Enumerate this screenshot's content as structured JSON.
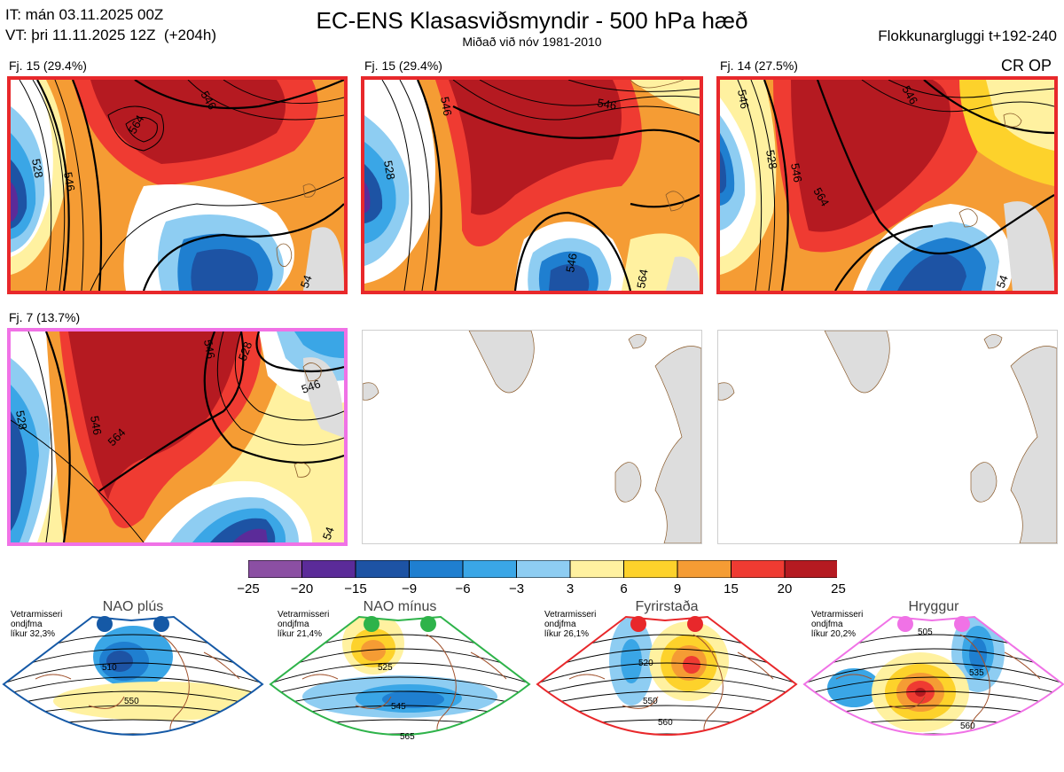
{
  "header": {
    "it_line": "IT: mán 03.11.2025 00Z",
    "vt_line": "VT: þri 11.11.2025 12Z  (+204h)",
    "title": "EC-ENS Klasasviðsmyndir - 500 hPa hæð",
    "subtitle": "Miðað við nóv 1981-2010",
    "window": "Flokkunargluggi t+192-240",
    "op_label": "CR OP"
  },
  "panels": [
    {
      "label": "Fj. 15 (29.4%)",
      "frame_color": "#e8282b",
      "contours": [
        "546",
        "528",
        "564",
        "546",
        "54"
      ]
    },
    {
      "label": "Fj. 15 (29.4%)",
      "frame_color": "#e8282b",
      "contours": [
        "546",
        "528",
        "546",
        "546",
        "564"
      ]
    },
    {
      "label": "Fj. 14 (27.5%)",
      "frame_color": "#e8282b",
      "contours": [
        "546",
        "528",
        "546",
        "564",
        "546",
        "54"
      ]
    },
    {
      "label": "Fj. 7 (13.7%)",
      "frame_color": "#f072e6",
      "contours": [
        "546",
        "528",
        "546",
        "564",
        "546",
        "54",
        "528"
      ]
    }
  ],
  "chart_data": {
    "type": "heatmap",
    "title": "EC-ENS Klasasviðsmyndir - 500 hPa hæð",
    "variable": "500 hPa hæð frávik",
    "colorbar": {
      "ticks": [
        "−25",
        "−20",
        "−15",
        "−9",
        "−6",
        "−3",
        "3",
        "6",
        "9",
        "15",
        "20",
        "25"
      ],
      "boundaries": [
        -25,
        -20,
        -15,
        -9,
        -6,
        -3,
        3,
        6,
        9,
        15,
        20,
        25
      ],
      "colors": [
        "#8b4fa3",
        "#5b2b99",
        "#1d53a4",
        "#1f7fd0",
        "#3aa6e6",
        "#8ecdf2",
        "#ffffff",
        "#fff1a0",
        "#fdd22b",
        "#f59c34",
        "#ef3b32",
        "#b51a21"
      ]
    },
    "clusters": [
      {
        "name": "Fj. 15",
        "percent": 29.4
      },
      {
        "name": "Fj. 15",
        "percent": 29.4
      },
      {
        "name": "Fj. 14",
        "percent": 27.5
      },
      {
        "name": "Fj. 7",
        "percent": 13.7
      }
    ],
    "regimes": [
      {
        "name": "NAO plús",
        "season": "Vetrarmisseri",
        "desc": "ondjfma",
        "likelihood": "líkur 32,3%",
        "color": "#1559a6",
        "contours": [
          "510",
          "550"
        ]
      },
      {
        "name": "NAO mínus",
        "season": "Vetrarmisseri",
        "desc": "ondjfma",
        "likelihood": "líkur 21,4%",
        "color": "#2eb34a",
        "contours": [
          "525",
          "545",
          "565"
        ]
      },
      {
        "name": "Fyrirstaða",
        "season": "Vetrarmisseri",
        "desc": "ondjfma",
        "likelihood": "líkur 26,1%",
        "color": "#e8282b",
        "contours": [
          "520",
          "550",
          "560"
        ]
      },
      {
        "name": "Hryggur",
        "season": "Vetrarmisseri",
        "desc": "ondjfma",
        "likelihood": "líkur 20,2%",
        "color": "#f072e6",
        "contours": [
          "505",
          "535",
          "560"
        ]
      }
    ]
  }
}
